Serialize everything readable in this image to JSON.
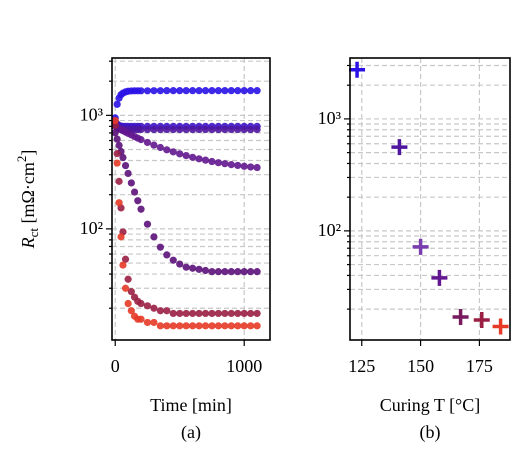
{
  "chart_data": [
    {
      "type": "scatter",
      "yscale": "log",
      "grid": true,
      "ylabel": [
        "R",
        "ct",
        " [mΩ·cm",
        "2",
        "]"
      ],
      "xlabel": "Time [min]",
      "caption": "(a)",
      "xlim": [
        -25,
        1200
      ],
      "xticks": [
        0,
        1000
      ],
      "ylim": [
        10.5,
        3200
      ],
      "yticks": [
        {
          "value": 100,
          "label": "10²"
        },
        {
          "value": 1000,
          "label": "10³"
        }
      ],
      "yticks_minor": [
        20,
        30,
        40,
        50,
        60,
        70,
        80,
        90,
        200,
        300,
        400,
        500,
        600,
        700,
        800,
        900,
        2000,
        3000
      ],
      "x": [
        0,
        15,
        30,
        45,
        60,
        80,
        100,
        125,
        150,
        175,
        200,
        250,
        300,
        350,
        400,
        450,
        500,
        550,
        600,
        650,
        700,
        750,
        800,
        850,
        900,
        950,
        1000,
        1050,
        1100
      ],
      "series": [
        {
          "color": "#2a12e6",
          "values": [
            950,
            1250,
            1420,
            1520,
            1570,
            1610,
            1630,
            1640,
            1645,
            1645,
            1645,
            1645,
            1648,
            1648,
            1650,
            1650,
            1650,
            1650,
            1650,
            1650,
            1650,
            1650,
            1650,
            1650,
            1650,
            1650,
            1650,
            1650,
            1650
          ]
        },
        {
          "color": "#3d14c4",
          "values": [
            900,
            840,
            815,
            805,
            800,
            800,
            800,
            800,
            800,
            800,
            800,
            800,
            800,
            800,
            800,
            800,
            800,
            800,
            800,
            800,
            800,
            800,
            800,
            800,
            800,
            800,
            800,
            800,
            800
          ]
        },
        {
          "color": "#4e169f",
          "values": [
            820,
            780,
            760,
            752,
            750,
            750,
            750,
            750,
            750,
            750,
            750,
            750,
            750,
            750,
            750,
            750,
            750,
            750,
            750,
            750,
            750,
            750,
            750,
            750,
            750,
            750,
            750,
            750,
            750
          ]
        },
        {
          "color": "#62168f",
          "values": [
            800,
            782,
            765,
            748,
            733,
            713,
            694,
            672,
            650,
            630,
            611,
            577,
            547,
            521,
            497,
            477,
            458,
            442,
            427,
            414,
            403,
            392,
            383,
            375,
            368,
            362,
            356,
            351,
            347
          ]
        },
        {
          "color": "#5c117a",
          "values": [
            702,
            618,
            544,
            480,
            425,
            361,
            308,
            254,
            211,
            177,
            149,
            110,
            85,
            69,
            59,
            53,
            49,
            46,
            45,
            44,
            43,
            42,
            42,
            42,
            42,
            42,
            42,
            42,
            42
          ]
        },
        {
          "color": "#9a1f44",
          "values": [
            818,
            460,
            262,
            153,
            94,
            54,
            36,
            28,
            25,
            23,
            22,
            21,
            20,
            19,
            19,
            18,
            18,
            18,
            18,
            18,
            18,
            18,
            18,
            18,
            18,
            18,
            18,
            18,
            18
          ]
        },
        {
          "color": "#e63a26",
          "values": [
            900,
            380,
            170,
            85,
            48,
            30,
            22,
            19,
            17,
            16,
            16,
            15,
            15,
            14,
            14,
            14,
            14,
            14,
            14,
            14,
            14,
            14,
            14,
            14,
            14,
            14,
            14,
            14,
            14
          ]
        }
      ]
    },
    {
      "type": "plus",
      "yscale": "log",
      "grid": true,
      "xlabel": "Curing T [°C]",
      "caption": "(b)",
      "xlim": [
        120,
        188
      ],
      "xticks": [
        125,
        150,
        175
      ],
      "ylim": [
        10.6,
        3500
      ],
      "yticks": [
        {
          "value": 100,
          "label": "10²"
        },
        {
          "value": 1000,
          "label": "10³"
        }
      ],
      "yticks_minor": [
        20,
        30,
        40,
        50,
        60,
        70,
        80,
        90,
        200,
        300,
        400,
        500,
        600,
        700,
        800,
        900,
        2000,
        3000
      ],
      "x": [
        123,
        141,
        150,
        158,
        167,
        176,
        184
      ],
      "values": [
        2750,
        560,
        72,
        38,
        17,
        16,
        14
      ],
      "colors": [
        "#2a12e6",
        "#4e169f",
        "#7a3db0",
        "#62168f",
        "#7a1a5e",
        "#9a1f44",
        "#e63a26"
      ]
    }
  ]
}
